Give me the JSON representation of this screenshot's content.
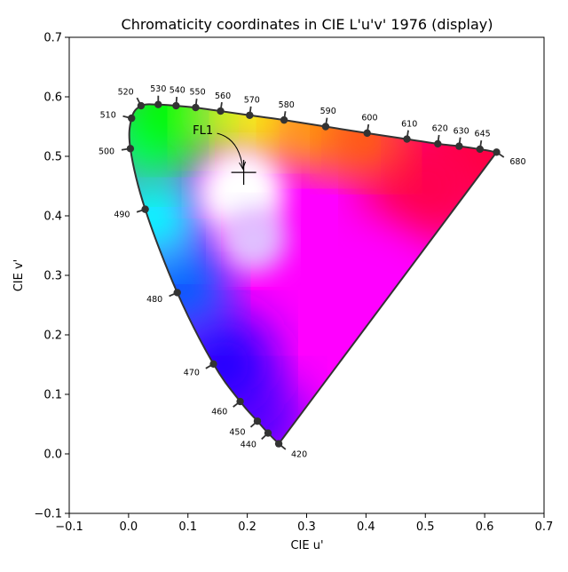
{
  "chart_data": {
    "type": "scatter",
    "title": "Chromaticity coordinates in CIE L'u'v' 1976 (display)",
    "xlabel": "CIE u'",
    "ylabel": "CIE v'",
    "xlim": [
      -0.1,
      0.7
    ],
    "ylim": [
      -0.1,
      0.7
    ],
    "xticks": [
      -0.1,
      0.0,
      0.1,
      0.2,
      0.3,
      0.4,
      0.5,
      0.6,
      0.7
    ],
    "yticks": [
      -0.1,
      0.0,
      0.1,
      0.2,
      0.3,
      0.4,
      0.5,
      0.6,
      0.7
    ],
    "xtick_labels": [
      "−0.1",
      "0.0",
      "0.1",
      "0.2",
      "0.3",
      "0.4",
      "0.5",
      "0.6",
      "0.7"
    ],
    "ytick_labels": [
      "−0.1",
      "0.0",
      "0.1",
      "0.2",
      "0.3",
      "0.4",
      "0.5",
      "0.6",
      "0.7"
    ],
    "grid": false,
    "spectral_locus": [
      {
        "nm": "420",
        "u": 0.253,
        "v": 0.017
      },
      {
        "nm": "440",
        "u": 0.235,
        "v": 0.035
      },
      {
        "nm": "450",
        "u": 0.217,
        "v": 0.055
      },
      {
        "nm": "460",
        "u": 0.188,
        "v": 0.088
      },
      {
        "nm": "470",
        "u": 0.143,
        "v": 0.151
      },
      {
        "nm": "480",
        "u": 0.082,
        "v": 0.271
      },
      {
        "nm": "490",
        "u": 0.028,
        "v": 0.411
      },
      {
        "nm": "500",
        "u": 0.003,
        "v": 0.513
      },
      {
        "nm": "510",
        "u": 0.005,
        "v": 0.564
      },
      {
        "nm": "520",
        "u": 0.021,
        "v": 0.585
      },
      {
        "nm": "530",
        "u": 0.05,
        "v": 0.587
      },
      {
        "nm": "540",
        "u": 0.08,
        "v": 0.585
      },
      {
        "nm": "550",
        "u": 0.113,
        "v": 0.582
      },
      {
        "nm": "560",
        "u": 0.155,
        "v": 0.576
      },
      {
        "nm": "570",
        "u": 0.204,
        "v": 0.569
      },
      {
        "nm": "580",
        "u": 0.262,
        "v": 0.561
      },
      {
        "nm": "590",
        "u": 0.332,
        "v": 0.55
      },
      {
        "nm": "600",
        "u": 0.402,
        "v": 0.539
      },
      {
        "nm": "610",
        "u": 0.469,
        "v": 0.529
      },
      {
        "nm": "620",
        "u": 0.521,
        "v": 0.521
      },
      {
        "nm": "630",
        "u": 0.557,
        "v": 0.517
      },
      {
        "nm": "645",
        "u": 0.592,
        "v": 0.512
      },
      {
        "nm": "680",
        "u": 0.62,
        "v": 0.507
      }
    ],
    "illuminant": {
      "name": "FL1",
      "u": 0.194,
      "v": 0.473
    },
    "colors": {
      "locus_line": "#333333",
      "marker": "#333333",
      "background": "#ffffff"
    }
  }
}
